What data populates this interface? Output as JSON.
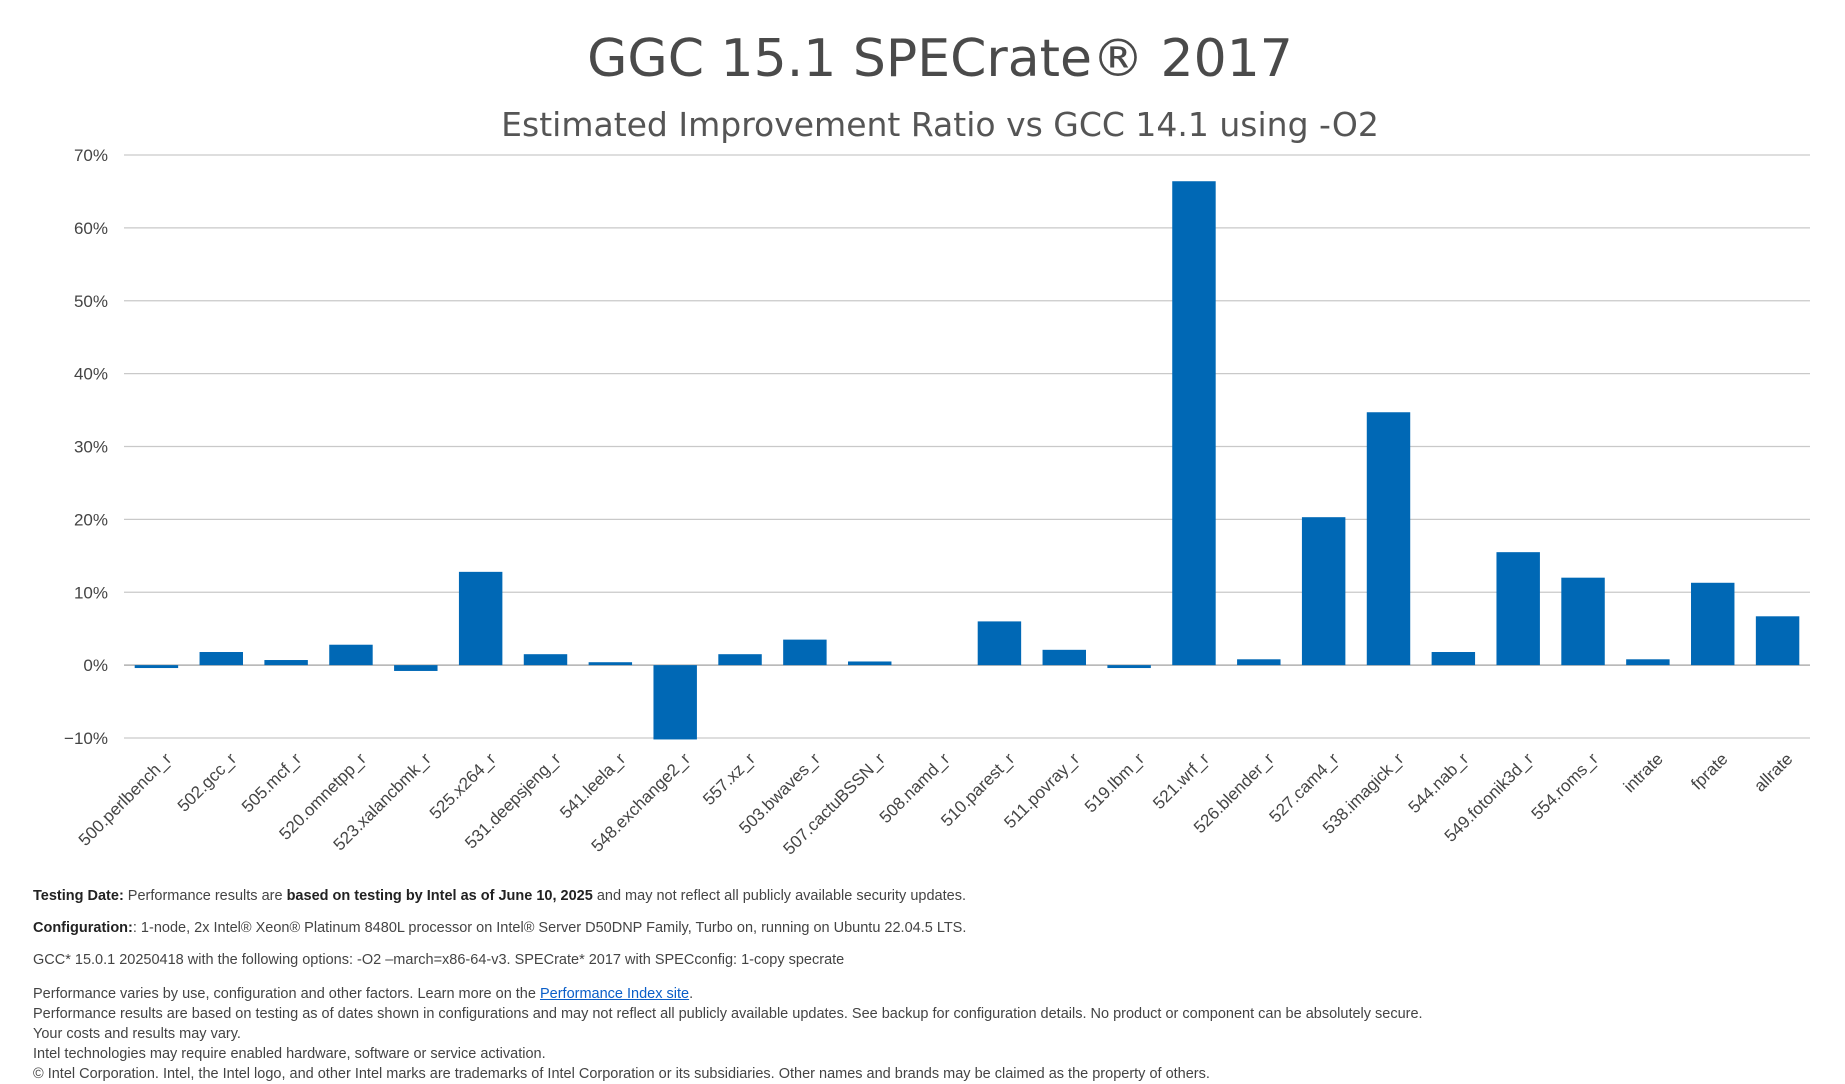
{
  "chart_data": {
    "type": "bar",
    "title": "GGC 15.1 SPECrate® 2017",
    "subtitle": "Estimated Improvement Ratio vs GCC 14.1 using -O2",
    "xlabel": "",
    "ylabel": "",
    "ylim": [
      -10,
      70
    ],
    "yticks": [
      -10,
      0,
      10,
      20,
      30,
      40,
      50,
      60,
      70
    ],
    "ytick_labels": [
      "−10%",
      "0%",
      "10%",
      "20%",
      "30%",
      "40%",
      "50%",
      "60%",
      "70%"
    ],
    "grid": true,
    "bar_color": "#0068b5",
    "categories": [
      "500.perlbench_r",
      "502.gcc_r",
      "505.mcf_r",
      "520.omnetpp_r",
      "523.xalancbmk_r",
      "525.x264_r",
      "531.deepsjeng_r",
      "541.leela_r",
      "548.exchange2_r",
      "557.xz_r",
      "503.bwaves_r",
      "507.cactuBSSN_r",
      "508.namd_r",
      "510.parest_r",
      "511.povray_r",
      "519.lbm_r",
      "521.wrf_r",
      "526.blender_r",
      "527.cam4_r",
      "538.imagick_r",
      "544.nab_r",
      "549.fotonik3d_r",
      "554.roms_r",
      "intrate",
      "fprate",
      "allrate"
    ],
    "values": [
      -0.4,
      1.8,
      0.7,
      2.8,
      -0.8,
      12.8,
      1.5,
      0.4,
      -10.2,
      1.5,
      3.5,
      0.5,
      0.0,
      6.0,
      2.1,
      -0.4,
      66.4,
      0.8,
      20.3,
      34.7,
      1.8,
      15.5,
      12.0,
      0.8,
      11.3,
      6.7
    ]
  },
  "footer": {
    "testing_date_label": "Testing Date:",
    "testing_date_pre": " Performance results are ",
    "testing_date_bold": "based on testing by Intel as of June 10, 2025",
    "testing_date_post": " and may not reflect all publicly available security updates.",
    "config_label": "Configuration:",
    "config_text": ": 1-node, 2x Intel® Xeon® Platinum 8480L processor on Intel® Server D50DNP Family, Turbo on,  running on Ubuntu 22.04.5 LTS.",
    "gcc_line": "GCC* 15.0.1 20250418 with the following options: -O2 –march=x86-64-v3. SPECrate* 2017 with SPECconfig: 1-copy specrate",
    "perf_varies_pre": "Performance varies by use, configuration and other factors. Learn more on the ",
    "perf_link": "Performance Index site",
    "perf_varies_post": ".",
    "disclaimer_1": "Performance results are based on testing as of dates shown in configurations and may not reflect all publicly available updates.  See backup for configuration details.  No product or component can be absolutely secure.",
    "disclaimer_2": "Your costs and results may vary.",
    "disclaimer_3": "Intel technologies may require enabled hardware, software or service activation.",
    "disclaimer_4": "© Intel Corporation.  Intel, the Intel logo, and other Intel marks are trademarks of Intel Corporation or its subsidiaries.  Other names and brands may be claimed as the property of others."
  }
}
